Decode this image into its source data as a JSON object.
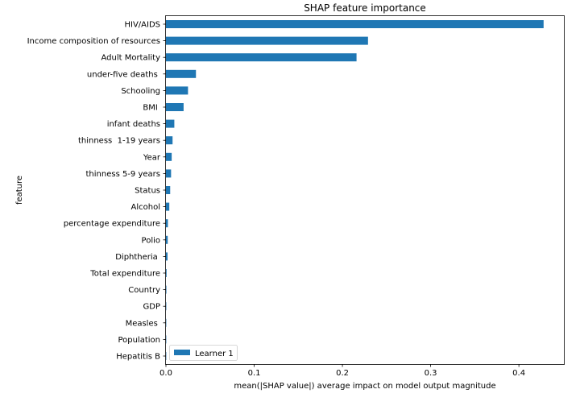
{
  "chart_data": {
    "type": "bar",
    "orientation": "horizontal",
    "title": "SHAP feature importance",
    "xlabel": "mean(|SHAP value|) average impact on model output magnitude",
    "ylabel": "feature",
    "xlim": [
      0,
      0.451
    ],
    "xticks": [
      0.0,
      0.1,
      0.2,
      0.3,
      0.4
    ],
    "xtick_labels": [
      "0.0",
      "0.1",
      "0.2",
      "0.3",
      "0.4"
    ],
    "grid": false,
    "legend_position": "lower-left",
    "categories": [
      "HIV/AIDS",
      "Income composition of resources",
      "Adult Mortality",
      "under-five deaths ",
      "Schooling",
      "BMI ",
      "infant deaths",
      "thinness  1-19 years",
      "Year",
      "thinness 5-9 years",
      "Status",
      "Alcohol",
      "percentage expenditure",
      "Polio",
      "Diphtheria ",
      "Total expenditure",
      "Country",
      "GDP",
      "Measles ",
      "Population",
      "Hepatitis B"
    ],
    "series": [
      {
        "name": "Learner 1",
        "color": "#1f77b4",
        "values": [
          0.428,
          0.229,
          0.216,
          0.034,
          0.025,
          0.02,
          0.0095,
          0.0075,
          0.0065,
          0.0058,
          0.0048,
          0.0038,
          0.0022,
          0.002,
          0.0018,
          0.0007,
          0.0005,
          0.0004,
          0.0003,
          0.0002,
          0.0001
        ]
      }
    ]
  }
}
